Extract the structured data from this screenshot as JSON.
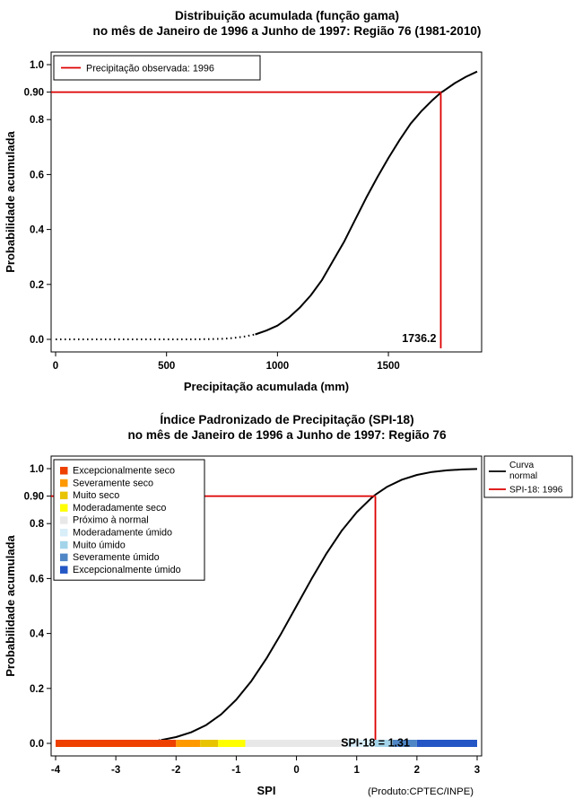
{
  "page": {
    "background": "#ffffff",
    "product_note": "(Produto:CPTEC/INPE)"
  },
  "chart_data": [
    {
      "type": "line",
      "title": "Distribuição acumulada (função gama)",
      "subtitle": "no mês de Janeiro de 1996 a Junho de 1997: Região 76 (1981-2010)",
      "xlabel": "Precipitação acumulada (mm)",
      "ylabel": "Probabilidade acumulada",
      "xlim": [
        0,
        1900
      ],
      "ylim": [
        0,
        1.0
      ],
      "xticks": [
        0,
        500,
        1000,
        1500
      ],
      "yticks": [
        0.0,
        0.2,
        0.4,
        0.6,
        0.8,
        1.0
      ],
      "special_ytick": "0.90",
      "grid": false,
      "legend_position": "top-left",
      "legend": [
        {
          "label": "Precipitação observada: 1996",
          "color": "#dd0000",
          "type": "line"
        }
      ],
      "crosshair": {
        "x": 1736.2,
        "y": 0.9,
        "x_label": "1736.2",
        "color": "#dd0000"
      },
      "series": [
        {
          "color": "#000000",
          "x": [
            0,
            100,
            200,
            300,
            400,
            500,
            600,
            700,
            750,
            800,
            850,
            900,
            950,
            1000,
            1050,
            1100,
            1150,
            1200,
            1250,
            1300,
            1350,
            1400,
            1450,
            1500,
            1550,
            1600,
            1650,
            1700,
            1736.2,
            1750,
            1800,
            1850,
            1900
          ],
          "y": [
            0,
            0,
            0,
            0,
            0,
            0,
            0,
            0.001,
            0.002,
            0.005,
            0.01,
            0.018,
            0.032,
            0.05,
            0.078,
            0.115,
            0.16,
            0.215,
            0.285,
            0.355,
            0.435,
            0.515,
            0.59,
            0.66,
            0.725,
            0.785,
            0.832,
            0.872,
            0.898,
            0.905,
            0.933,
            0.956,
            0.975
          ]
        }
      ]
    },
    {
      "type": "line",
      "title": "Índice Padronizado de Precipitação (SPI-18)",
      "subtitle": "no mês de Janeiro de 1996 a Junho de 1997: Região 76",
      "xlabel": "SPI",
      "ylabel": "Probabilidade acumulada",
      "xlim": [
        -4,
        3
      ],
      "ylim": [
        0,
        1.0
      ],
      "xticks": [
        -4,
        -3,
        -2,
        -1,
        0,
        1,
        2,
        3
      ],
      "yticks": [
        0.0,
        0.2,
        0.4,
        0.6,
        0.8,
        1.0
      ],
      "special_ytick": "0.90",
      "grid": false,
      "categories_legend": [
        {
          "label": "Excepcionalmente seco",
          "color": "#ee4000"
        },
        {
          "label": "Severamente seco",
          "color": "#ff9900"
        },
        {
          "label": "Muito seco",
          "color": "#e8c400"
        },
        {
          "label": "Moderadamente seco",
          "color": "#ffff00"
        },
        {
          "label": "Próximo à normal",
          "color": "#e8e8e8"
        },
        {
          "label": "Moderadamente úmido",
          "color": "#d8eef8"
        },
        {
          "label": "Muito úmido",
          "color": "#a4d4ea"
        },
        {
          "label": "Severamente úmido",
          "color": "#4f86c6"
        },
        {
          "label": "Excepcionalmente úmido",
          "color": "#2457c5"
        }
      ],
      "legend_right": [
        {
          "label": "Curva normal",
          "color": "#000000",
          "type": "line",
          "two_line": true
        },
        {
          "label": "SPI-18: 1996",
          "color": "#dd0000",
          "type": "line",
          "two_line": false
        }
      ],
      "category_band": [
        {
          "from": -4,
          "to": -2,
          "color": "#ee4000"
        },
        {
          "from": -2,
          "to": -1.6,
          "color": "#ff9900"
        },
        {
          "from": -1.6,
          "to": -1.3,
          "color": "#e8c400"
        },
        {
          "from": -1.3,
          "to": -0.85,
          "color": "#ffff00"
        },
        {
          "from": -0.85,
          "to": 0.85,
          "color": "#e8e8e8"
        },
        {
          "from": 0.85,
          "to": 1.3,
          "color": "#d8eef8"
        },
        {
          "from": 1.3,
          "to": 1.6,
          "color": "#a4d4ea"
        },
        {
          "from": 1.6,
          "to": 2,
          "color": "#4f86c6"
        },
        {
          "from": 2,
          "to": 3,
          "color": "#2457c5"
        }
      ],
      "crosshair": {
        "x": 1.31,
        "y": 0.9,
        "color": "#dd0000"
      },
      "annotation": "SPI-18 = 1.31",
      "series": [
        {
          "name": "Curva normal",
          "color": "#000000",
          "x": [
            -4,
            -3.75,
            -3.5,
            -3.25,
            -3,
            -2.75,
            -2.5,
            -2.25,
            -2,
            -1.75,
            -1.5,
            -1.25,
            -1,
            -0.75,
            -0.5,
            -0.25,
            0,
            0.25,
            0.5,
            0.75,
            1,
            1.25,
            1.31,
            1.5,
            1.75,
            2,
            2.25,
            2.5,
            2.75,
            3
          ],
          "y": [
            0.0,
            0.0001,
            0.0002,
            0.0006,
            0.0013,
            0.003,
            0.0062,
            0.0122,
            0.0228,
            0.0401,
            0.0668,
            0.1056,
            0.1587,
            0.2266,
            0.3085,
            0.4013,
            0.5,
            0.5987,
            0.6915,
            0.7734,
            0.8413,
            0.8944,
            0.9049,
            0.9332,
            0.9599,
            0.9772,
            0.9878,
            0.9938,
            0.997,
            0.9987
          ]
        }
      ]
    }
  ]
}
